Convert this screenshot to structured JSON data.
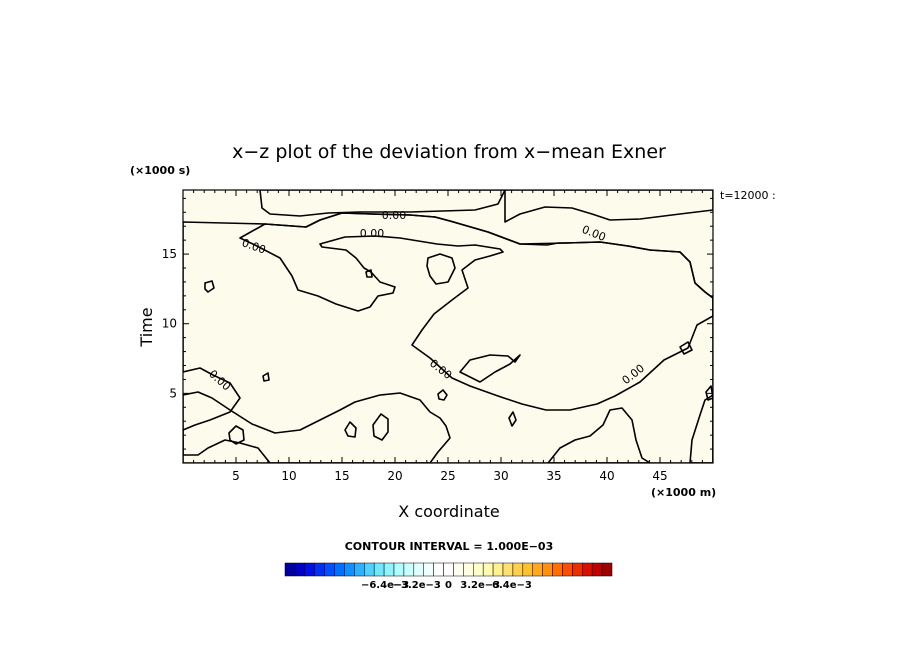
{
  "chart_data": {
    "type": "contour",
    "title": "x−z plot of the deviation from x−mean Exner",
    "time_label": "t=12000 :",
    "xlabel": "X coordinate",
    "ylabel": "Time",
    "x_unit": "(×1000 m)",
    "y_unit": "(×1000 s)",
    "xlim": [
      0,
      50
    ],
    "ylim": [
      0,
      19.6
    ],
    "x_ticks": [
      "5",
      "10",
      "15",
      "20",
      "25",
      "30",
      "35",
      "40",
      "45"
    ],
    "x_tick_values": [
      5,
      10,
      15,
      20,
      25,
      30,
      35,
      40,
      45
    ],
    "y_ticks": [
      "5",
      "10",
      "15"
    ],
    "y_tick_values": [
      5,
      10,
      15
    ],
    "contour_interval_text": "CONTOUR INTERVAL = 1.000E−03",
    "contour_labels": [
      "0.00",
      "0.00",
      "0.00",
      "0.00",
      "0.00",
      "0.00",
      "0.00"
    ],
    "positive_color": "#fdfbec",
    "negative_color": "#e8fdfd",
    "colorbar": {
      "colors": [
        "#0000a0",
        "#0000c8",
        "#0010e0",
        "#0030f0",
        "#0050ff",
        "#0070ff",
        "#1090ff",
        "#30b0ff",
        "#50d0ff",
        "#70e8ff",
        "#90f4ff",
        "#b0fcff",
        "#c8ffff",
        "#e0ffff",
        "#f0ffff",
        "#ffffff",
        "#ffffff",
        "#fffff0",
        "#ffffe0",
        "#ffffc8",
        "#fffab0",
        "#fff090",
        "#ffe070",
        "#ffd050",
        "#ffc030",
        "#ffa820",
        "#ff9010",
        "#ff7000",
        "#f85000",
        "#e83000",
        "#d81000",
        "#c00000",
        "#a00000"
      ],
      "tick_labels": [
        "−6.4e−3",
        "−3.2e−3",
        "0",
        "3.2e−3",
        "6.4e−3"
      ],
      "tick_values": [
        -0.0064,
        -0.0032,
        0,
        0.0032,
        0.0064
      ]
    }
  }
}
